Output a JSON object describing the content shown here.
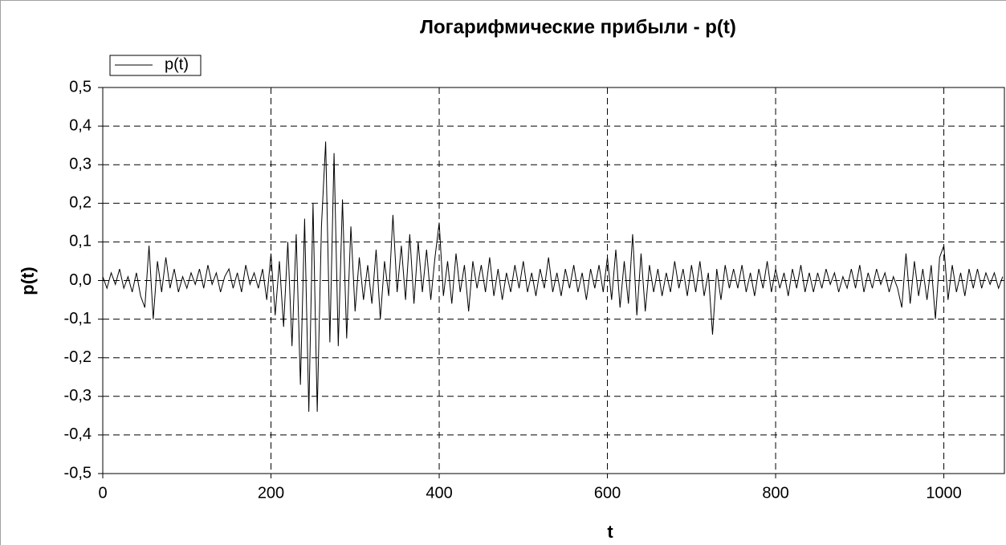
{
  "chart_data": {
    "type": "line",
    "title": "Логарифмические прибыли - p(t)",
    "x_label": "t",
    "y_label": "p(t)",
    "x": [
      0,
      5,
      10,
      15,
      20,
      25,
      30,
      35,
      40,
      45,
      50,
      55,
      60,
      65,
      70,
      75,
      80,
      85,
      90,
      95,
      100,
      105,
      110,
      115,
      120,
      125,
      130,
      135,
      140,
      145,
      150,
      155,
      160,
      165,
      170,
      175,
      180,
      185,
      190,
      195,
      200,
      205,
      210,
      215,
      220,
      225,
      230,
      235,
      240,
      245,
      250,
      255,
      260,
      265,
      270,
      275,
      280,
      285,
      290,
      295,
      300,
      305,
      310,
      315,
      320,
      325,
      330,
      335,
      340,
      345,
      350,
      355,
      360,
      365,
      370,
      375,
      380,
      385,
      390,
      395,
      400,
      405,
      410,
      415,
      420,
      425,
      430,
      435,
      440,
      445,
      450,
      455,
      460,
      465,
      470,
      475,
      480,
      485,
      490,
      495,
      500,
      505,
      510,
      515,
      520,
      525,
      530,
      535,
      540,
      545,
      550,
      555,
      560,
      565,
      570,
      575,
      580,
      585,
      590,
      595,
      600,
      605,
      610,
      615,
      620,
      625,
      630,
      635,
      640,
      645,
      650,
      655,
      660,
      665,
      670,
      675,
      680,
      685,
      690,
      695,
      700,
      705,
      710,
      715,
      720,
      725,
      730,
      735,
      740,
      745,
      750,
      755,
      760,
      765,
      770,
      775,
      780,
      785,
      790,
      795,
      800,
      805,
      810,
      815,
      820,
      825,
      830,
      835,
      840,
      845,
      850,
      855,
      860,
      865,
      870,
      875,
      880,
      885,
      890,
      895,
      900,
      905,
      910,
      915,
      920,
      925,
      930,
      935,
      940,
      945,
      950,
      955,
      960,
      965,
      970,
      975,
      980,
      985,
      990,
      995,
      1000,
      1005,
      1010,
      1015,
      1020,
      1025,
      1030,
      1035,
      1040,
      1045,
      1050,
      1055,
      1060,
      1065,
      1070
    ],
    "series": [
      {
        "name": "p(t)",
        "color": "#000000",
        "values": [
          0.01,
          -0.02,
          0.02,
          -0.01,
          0.03,
          -0.02,
          0.01,
          -0.03,
          0.02,
          -0.04,
          -0.07,
          0.09,
          -0.1,
          0.05,
          -0.03,
          0.06,
          -0.02,
          0.03,
          -0.03,
          0.01,
          -0.02,
          0.02,
          -0.01,
          0.03,
          -0.02,
          0.04,
          -0.01,
          0.02,
          -0.03,
          0.01,
          0.03,
          -0.02,
          0.02,
          -0.03,
          0.04,
          -0.01,
          0.02,
          -0.02,
          0.03,
          -0.05,
          0.07,
          -0.09,
          0.05,
          -0.12,
          0.1,
          -0.17,
          0.12,
          -0.27,
          0.16,
          -0.34,
          0.2,
          -0.34,
          0.14,
          0.36,
          -0.16,
          0.33,
          -0.17,
          0.21,
          -0.15,
          0.14,
          -0.08,
          0.06,
          -0.05,
          0.04,
          -0.06,
          0.08,
          -0.1,
          0.05,
          -0.04,
          0.17,
          -0.03,
          0.09,
          -0.05,
          0.12,
          -0.06,
          0.1,
          -0.03,
          0.08,
          -0.05,
          0.06,
          0.15,
          -0.04,
          0.05,
          -0.06,
          0.07,
          -0.03,
          0.04,
          -0.08,
          0.05,
          -0.02,
          0.04,
          -0.03,
          0.06,
          -0.04,
          0.03,
          -0.05,
          0.02,
          -0.03,
          0.04,
          -0.02,
          0.05,
          -0.03,
          0.02,
          -0.04,
          0.03,
          -0.02,
          0.06,
          -0.03,
          0.02,
          -0.04,
          0.03,
          -0.02,
          0.04,
          -0.03,
          0.02,
          -0.05,
          0.03,
          -0.02,
          0.04,
          -0.03,
          0.06,
          -0.05,
          0.08,
          -0.07,
          0.05,
          -0.06,
          0.12,
          -0.09,
          0.07,
          -0.08,
          0.04,
          -0.03,
          0.03,
          -0.04,
          0.02,
          -0.03,
          0.05,
          -0.02,
          0.03,
          -0.04,
          0.04,
          -0.03,
          0.05,
          -0.04,
          0.02,
          -0.14,
          0.03,
          -0.05,
          0.04,
          -0.02,
          0.03,
          -0.02,
          0.04,
          -0.03,
          0.02,
          -0.04,
          0.03,
          -0.02,
          0.05,
          -0.03,
          0.03,
          -0.02,
          0.02,
          -0.04,
          0.03,
          -0.02,
          0.04,
          -0.03,
          0.02,
          -0.03,
          0.02,
          -0.02,
          0.03,
          -0.01,
          0.02,
          -0.03,
          0.01,
          -0.02,
          0.03,
          -0.02,
          0.04,
          -0.03,
          0.02,
          -0.02,
          0.03,
          -0.01,
          0.02,
          -0.03,
          0.01,
          -0.02,
          -0.07,
          0.07,
          -0.06,
          0.05,
          -0.04,
          0.03,
          -0.05,
          0.04,
          -0.1,
          0.06,
          0.09,
          -0.05,
          0.04,
          -0.03,
          0.02,
          -0.04,
          0.03,
          -0.02,
          0.03,
          -0.02,
          0.02,
          -0.01,
          0.02,
          -0.02,
          0.01
        ]
      }
    ],
    "xlim": [
      0,
      1072
    ],
    "ylim": [
      -0.5,
      0.5
    ],
    "xticks": [
      0,
      200,
      400,
      600,
      800,
      1000
    ],
    "yticks": [
      {
        "value": -0.5,
        "label": "-0,5"
      },
      {
        "value": -0.4,
        "label": "-0,4"
      },
      {
        "value": -0.3,
        "label": "-0,3"
      },
      {
        "value": -0.2,
        "label": "-0,2"
      },
      {
        "value": -0.1,
        "label": "-0,1"
      },
      {
        "value": 0,
        "label": "0,0"
      },
      {
        "value": 0.1,
        "label": "0,1"
      },
      {
        "value": 0.2,
        "label": "0,2"
      },
      {
        "value": 0.3,
        "label": "0,3"
      },
      {
        "value": 0.4,
        "label": "0,4"
      },
      {
        "value": 0.5,
        "label": "0,5"
      }
    ],
    "grid": true,
    "legend": "upper left"
  }
}
